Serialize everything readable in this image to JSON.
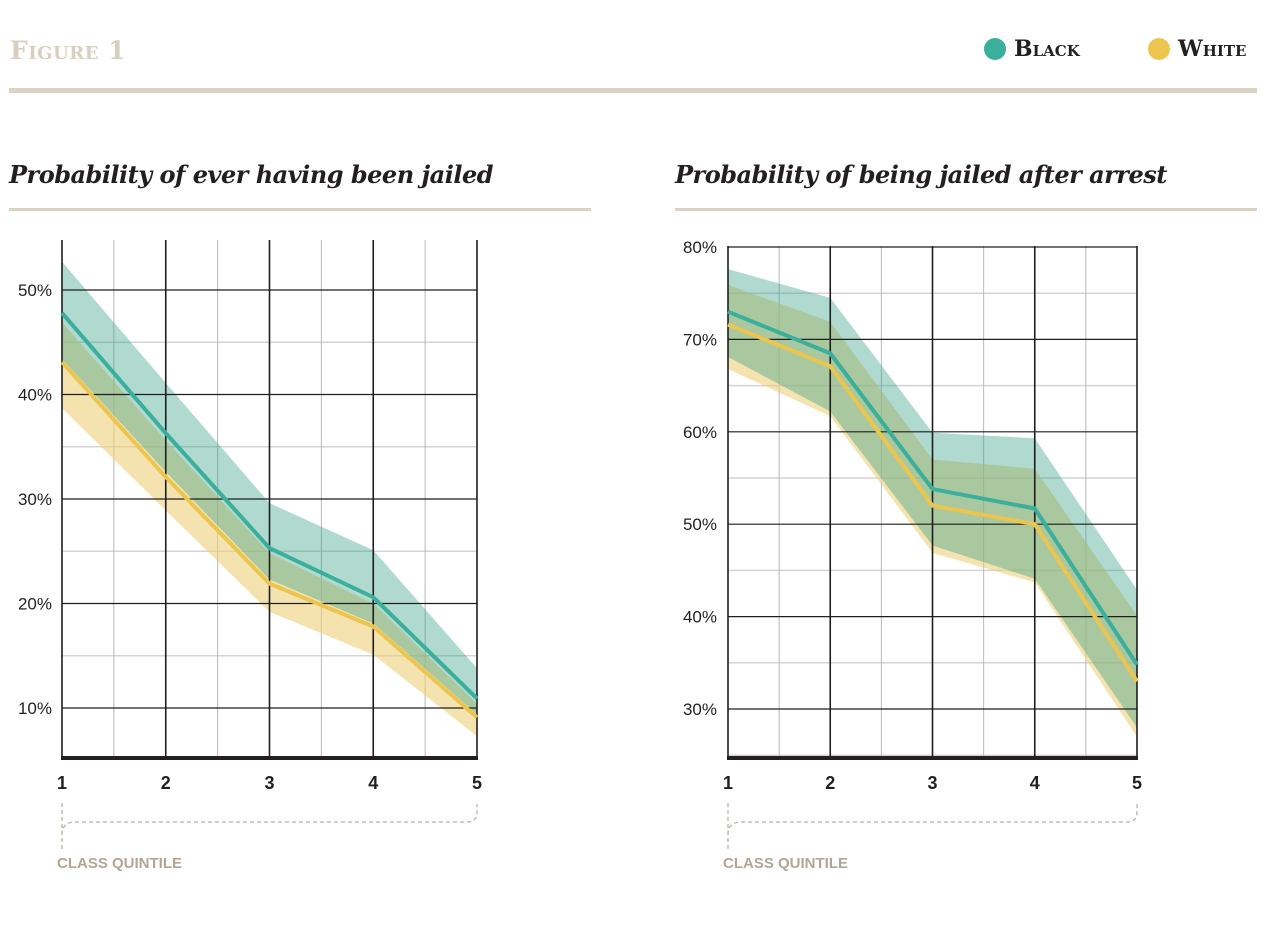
{
  "figure_title": "Figure 1",
  "legend": [
    {
      "label": "Black",
      "color": "#3aaf9c"
    },
    {
      "label": "White",
      "color": "#ecc54f"
    }
  ],
  "colors": {
    "black_band": "#3a9f88",
    "white_band": "#efd07a",
    "rule": "#dcd2c3",
    "axis_label": "#b3a595"
  },
  "chart_data": [
    {
      "type": "line",
      "title": "Probability of ever having been jailed",
      "xlabel": "Class Quintile",
      "ylabel": "",
      "x": [
        1,
        2,
        3,
        4,
        5
      ],
      "xticks": [
        "1",
        "2",
        "3",
        "4",
        "5"
      ],
      "ylim": [
        5.3,
        54.8
      ],
      "yticks": [
        10,
        20,
        30,
        40,
        50
      ],
      "ytick_labels": [
        "10%",
        "20%",
        "30%",
        "40%",
        "50%"
      ],
      "grid": true,
      "series": [
        {
          "name": "Black",
          "values": [
            47.8,
            36.3,
            25.3,
            20.6,
            10.9
          ],
          "upper": [
            52.7,
            41.1,
            29.6,
            25.1,
            13.8
          ],
          "lower": [
            43.4,
            32.6,
            22.3,
            18.1,
            9.4
          ]
        },
        {
          "name": "White",
          "values": [
            43.1,
            32.1,
            21.9,
            17.8,
            9.1
          ],
          "upper": [
            46.9,
            35.6,
            24.8,
            20.0,
            10.4
          ],
          "lower": [
            38.7,
            28.9,
            19.2,
            15.1,
            7.3
          ]
        }
      ]
    },
    {
      "type": "line",
      "title": "Probability of being jailed after arrest",
      "xlabel": "Class Quintile",
      "ylabel": "",
      "x": [
        1,
        2,
        3,
        4,
        5
      ],
      "xticks": [
        "1",
        "2",
        "3",
        "4",
        "5"
      ],
      "ylim": [
        24.7,
        80
      ],
      "yticks": [
        30,
        40,
        50,
        60,
        70,
        80
      ],
      "ytick_labels": [
        "30%",
        "40%",
        "50%",
        "60%",
        "70%",
        "80%"
      ],
      "grid": true,
      "series": [
        {
          "name": "Black",
          "values": [
            73.0,
            68.5,
            53.8,
            51.7,
            34.8
          ],
          "upper": [
            77.6,
            74.5,
            59.9,
            59.3,
            42.9
          ],
          "lower": [
            68.1,
            62.2,
            47.7,
            44.1,
            28.0
          ]
        },
        {
          "name": "White",
          "values": [
            71.6,
            67.1,
            52.0,
            50.0,
            33.0
          ],
          "upper": [
            75.9,
            71.9,
            57.0,
            56.0,
            40.1
          ],
          "lower": [
            66.8,
            61.7,
            46.9,
            43.7,
            27.0
          ]
        }
      ]
    }
  ]
}
